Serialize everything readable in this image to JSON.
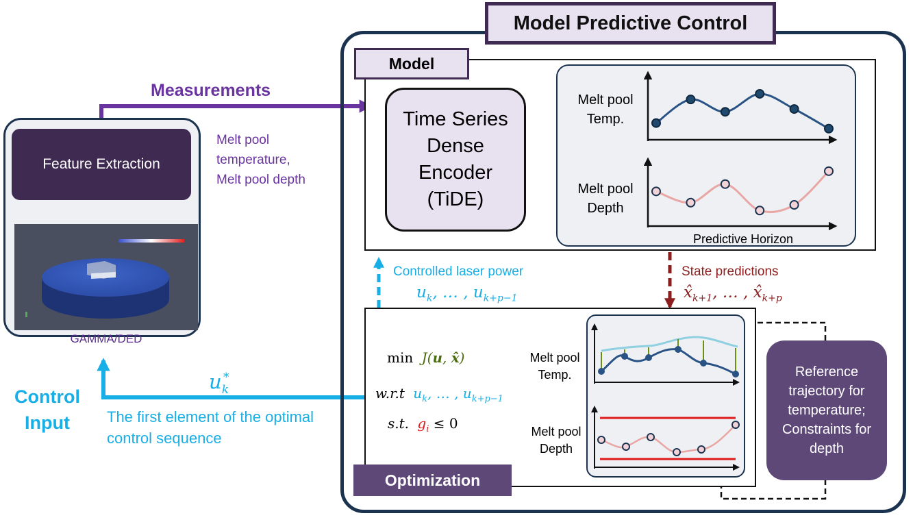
{
  "mpc": {
    "title": "Model Predictive Control"
  },
  "model": {
    "title": "Model",
    "tide_label": "Time Series Dense Encoder (TiDE)",
    "temp_chart_label": "Melt pool Temp.",
    "depth_chart_label": "Melt pool Depth",
    "horizon_label": "Predictive Horizon"
  },
  "left": {
    "feature_extraction": "Feature Extraction",
    "sim_label": "GAMMA/DED",
    "measurements": "Measurements",
    "measurements_desc": "Melt pool temperature, Melt pool depth",
    "control_input": "Control Input",
    "control_symbol": "u",
    "control_sub": "k",
    "control_sup": "*",
    "control_desc": "The first element of the optimal control sequence"
  },
  "arrows": {
    "laser_label": "Controlled laser power",
    "laser_seq": "uk, … , uk+p−1",
    "state_label": "State predictions",
    "state_seq": "x̂k+1, … , x̂k+p"
  },
  "optimization": {
    "title": "Optimization",
    "min_word": "min",
    "objective": "J(u, x̂)",
    "wrt_word": "w.r.t",
    "wrt_vars": "uk, … , uk+p−1",
    "st_word": "s.t.",
    "constraint_g": "gi",
    "constraint_rest": "≤ 0",
    "temp_chart_label": "Melt pool Temp.",
    "depth_chart_label": "Melt pool Depth",
    "reference_box": "Reference trajectory for temperature; Constraints for depth"
  },
  "colors": {
    "purple_dark": "#3f2a52",
    "purple_mid": "#5e4878",
    "purple_light": "#e8e1ef",
    "navy": "#1c3350",
    "cyan": "#18aee6",
    "brown": "#8b1e1e",
    "pink_line": "#e8a7a4",
    "blue_line": "#2a5385",
    "ref_line": "#8fd0e0",
    "red_line": "#e0191b",
    "green_arrow": "#6a8f12"
  },
  "chart_data": [
    {
      "type": "line",
      "xlabel": "",
      "ylabel": "Melt pool Temp.",
      "x": [
        1,
        2,
        3,
        4,
        5,
        6
      ],
      "series": [
        {
          "values": [
            0.2,
            0.62,
            0.4,
            0.72,
            0.45,
            0.1
          ]
        }
      ]
    },
    {
      "type": "line",
      "xlabel": "Predictive Horizon",
      "ylabel": "Melt pool Depth",
      "x": [
        1,
        2,
        3,
        4,
        5,
        6
      ],
      "series": [
        {
          "values": [
            0.52,
            0.32,
            0.65,
            0.18,
            0.28,
            0.88
          ]
        }
      ]
    }
  ]
}
